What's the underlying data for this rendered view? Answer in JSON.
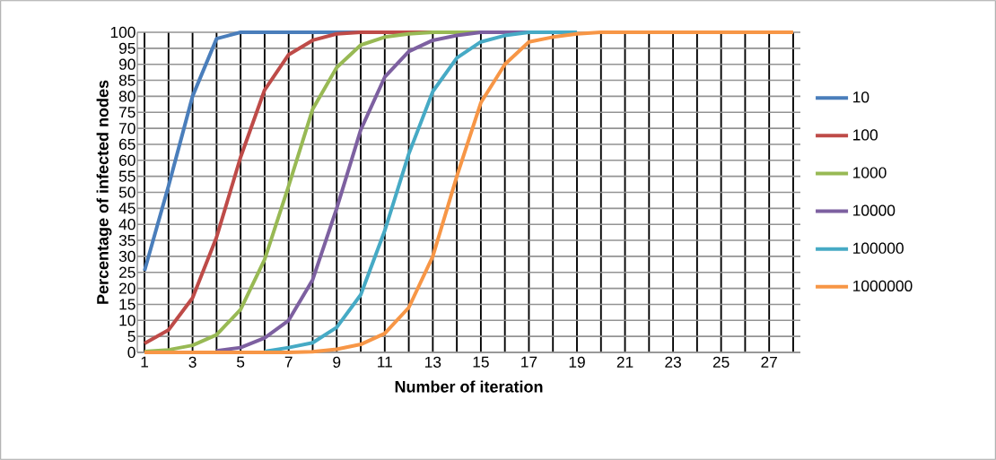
{
  "chart_data": {
    "type": "line",
    "xlabel": "Number of iteration",
    "ylabel": "Percentage of infected nodes",
    "categories": [
      "1",
      null,
      "3",
      null,
      "5",
      null,
      "7",
      null,
      "9",
      null,
      "11",
      null,
      "13",
      null,
      "15",
      null,
      "17",
      null,
      "19",
      null,
      "21",
      null,
      "23",
      null,
      "25",
      null,
      "27",
      null
    ],
    "ylim": [
      0,
      100
    ],
    "yticks": [
      0,
      5,
      10,
      15,
      20,
      25,
      30,
      35,
      40,
      45,
      50,
      55,
      60,
      65,
      70,
      75,
      80,
      85,
      90,
      95,
      100
    ],
    "grid": true,
    "legend": "right",
    "marker": "none",
    "line_style": "solid",
    "series": [
      {
        "name": "10",
        "color": "#4a7ebb",
        "values": [
          25.5,
          52,
          80,
          98,
          100,
          100,
          100,
          100,
          100,
          100,
          null,
          null,
          null,
          null,
          null,
          null,
          null,
          null,
          null,
          null,
          null,
          null,
          null,
          null,
          null,
          null,
          null,
          null
        ]
      },
      {
        "name": "100",
        "color": "#be4b48",
        "values": [
          2.8,
          7,
          17,
          36,
          61,
          82,
          93,
          97.5,
          99.5,
          100,
          100,
          100,
          100,
          null,
          null,
          null,
          null,
          null,
          null,
          null,
          null,
          null,
          null,
          null,
          null,
          null,
          null,
          null
        ]
      },
      {
        "name": "1000",
        "color": "#98b954",
        "values": [
          0.3,
          0.8,
          2.2,
          5.5,
          13.4,
          29,
          52,
          76,
          89,
          96,
          98.5,
          99.5,
          100,
          100,
          100,
          null,
          null,
          null,
          null,
          null,
          null,
          null,
          null,
          null,
          null,
          null,
          null,
          null
        ]
      },
      {
        "name": "10000",
        "color": "#7d60a0",
        "values": [
          null,
          null,
          null,
          0.5,
          1.5,
          4.5,
          10,
          22.7,
          45,
          69.5,
          86,
          94,
          97.5,
          99,
          100,
          100,
          100,
          null,
          null,
          null,
          null,
          null,
          null,
          null,
          null,
          null,
          null,
          null
        ]
      },
      {
        "name": "100000",
        "color": "#46aac5",
        "values": [
          null,
          null,
          null,
          null,
          null,
          0.3,
          1.5,
          3,
          7.8,
          18,
          38,
          62,
          81.5,
          92,
          97,
          99,
          100,
          100,
          100,
          null,
          null,
          null,
          null,
          null,
          null,
          null,
          null,
          null
        ]
      },
      {
        "name": "1000000",
        "color": "#f79646",
        "values": [
          0,
          0,
          0,
          0,
          0,
          0,
          0,
          0.2,
          1,
          2.5,
          5.9,
          14,
          30,
          55,
          78,
          90,
          97,
          98.5,
          99.5,
          100,
          100,
          100,
          100,
          100,
          100,
          100,
          100,
          100
        ]
      }
    ]
  }
}
